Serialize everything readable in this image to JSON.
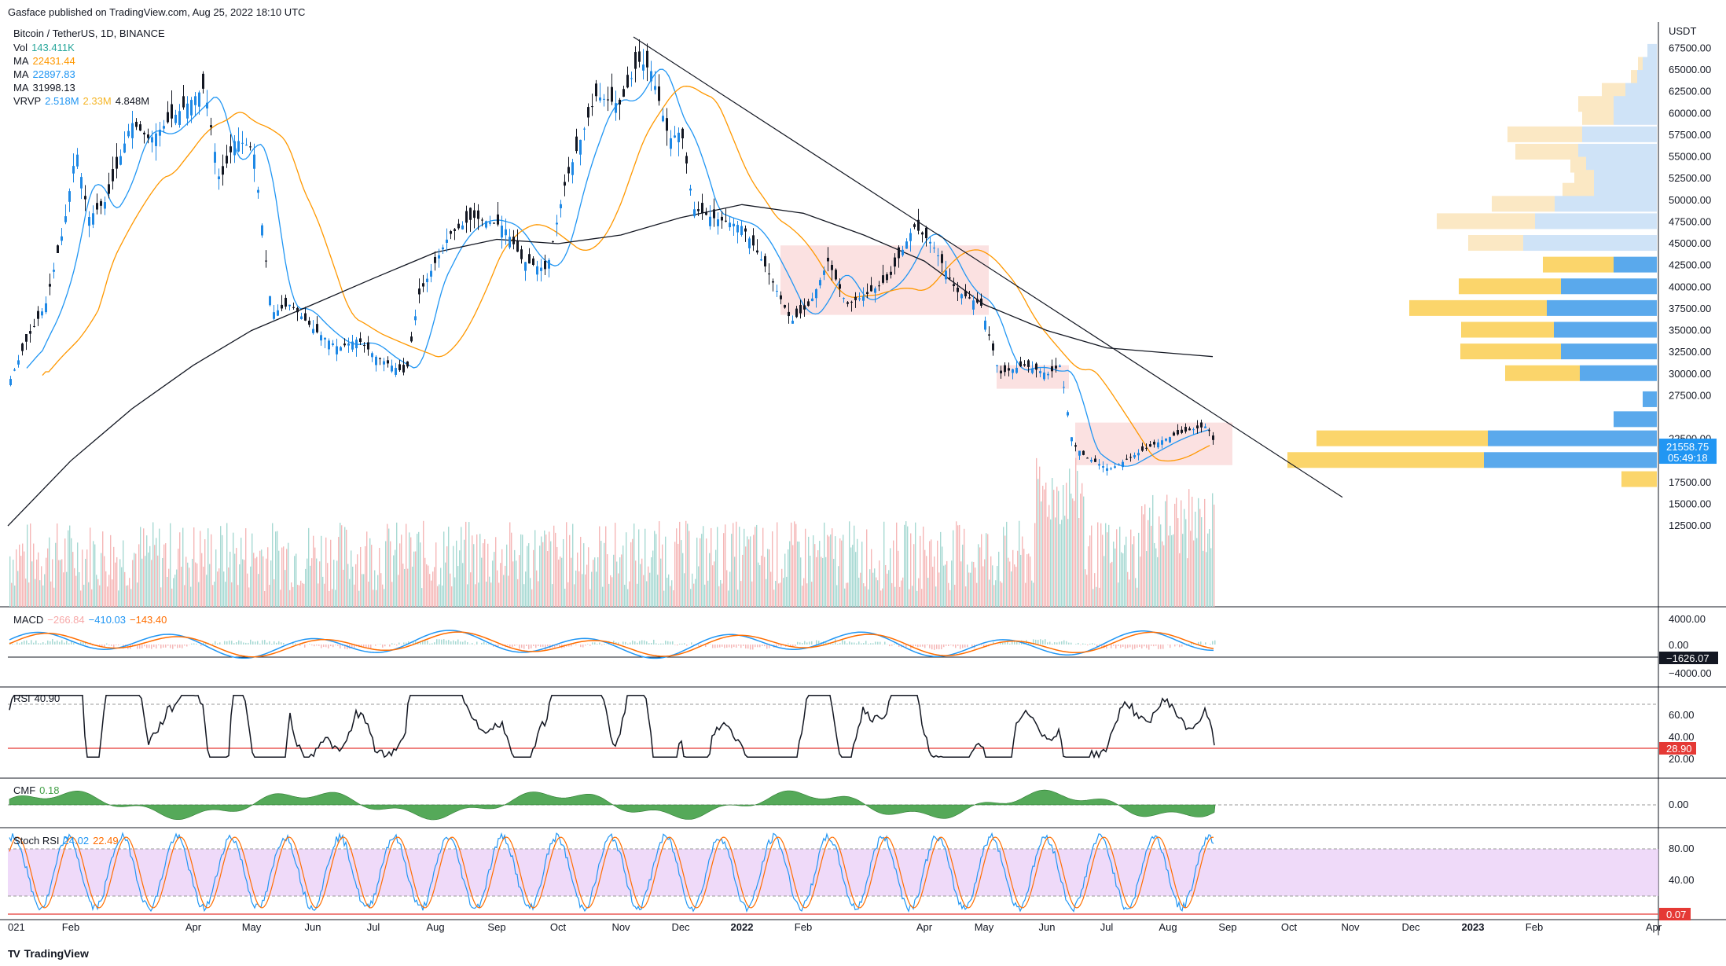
{
  "header": {
    "published": "Gasface published on TradingView.com, Aug 25, 2022 18:10 UTC"
  },
  "legend": {
    "symbol": "Bitcoin / TetherUS, 1D, BINANCE",
    "vol": {
      "label": "Vol",
      "value": "143.411K",
      "color": "#26a69a"
    },
    "ma1": {
      "label": "MA",
      "value": "22431.44",
      "color": "#ff9800"
    },
    "ma2": {
      "label": "MA",
      "value": "22897.83",
      "color": "#2196f3"
    },
    "ma3": {
      "label": "MA",
      "value": "31998.13",
      "color": "#131722"
    },
    "vrvp": {
      "label": "VRVP",
      "v1": "2.518M",
      "v2": "2.33M",
      "v3": "4.848M"
    }
  },
  "price_axis": {
    "unit": "USDT",
    "ticks": [
      "67500.00",
      "65000.00",
      "62500.00",
      "60000.00",
      "57500.00",
      "55000.00",
      "52500.00",
      "50000.00",
      "47500.00",
      "45000.00",
      "42500.00",
      "40000.00",
      "37500.00",
      "35000.00",
      "32500.00",
      "30000.00",
      "27500.00",
      "22500.00",
      "17500.00",
      "15000.00",
      "12500.00"
    ],
    "last_price": "21558.75",
    "countdown": "05:49:18"
  },
  "time_axis": [
    "021",
    "Feb",
    "Apr",
    "May",
    "Jun",
    "Jul",
    "Aug",
    "Sep",
    "Oct",
    "Nov",
    "Dec",
    "2022",
    "Feb",
    "Apr",
    "May",
    "Jun",
    "Jul",
    "Aug",
    "Sep",
    "Oct",
    "Nov",
    "Dec",
    "2023",
    "Feb",
    "Apr"
  ],
  "macd": {
    "label": "MACD",
    "v1": "−266.84",
    "v2": "−410.03",
    "v3": "−143.40",
    "ticks": [
      "4000.00",
      "0.00",
      "−4000.00"
    ],
    "badge": "−1626.07"
  },
  "rsi": {
    "label": "RSI",
    "value": "40.90",
    "ticks": [
      "60.00",
      "40.00",
      "20.00"
    ],
    "badge": "28.90"
  },
  "cmf": {
    "label": "CMF",
    "value": "0.18",
    "ticks": [
      "0.00"
    ]
  },
  "stoch": {
    "label": "Stoch RSI",
    "k": "24.02",
    "d": "22.49",
    "ticks": [
      "80.00",
      "40.00"
    ],
    "badge": "0.07"
  },
  "brand": "TradingView",
  "chart_data": {
    "type": "candlestick",
    "symbol": "BTCUSDT",
    "ylabel": "USDT",
    "ylim": [
      10000,
      70000
    ],
    "x": [
      "2021-02",
      "2021-03",
      "2021-04",
      "2021-05",
      "2021-06",
      "2021-07",
      "2021-08",
      "2021-09",
      "2021-10",
      "2021-11",
      "2021-12",
      "2022-01",
      "2022-02",
      "2022-03",
      "2022-04",
      "2022-05",
      "2022-06",
      "2022-07",
      "2022-08"
    ],
    "close_approx": [
      45000,
      58000,
      57000,
      37000,
      35000,
      41000,
      47000,
      43000,
      61000,
      57000,
      46000,
      38000,
      43000,
      45500,
      38000,
      31500,
      19900,
      23300,
      21558.75
    ],
    "series": [
      {
        "name": "MA",
        "value": 22431.44
      },
      {
        "name": "MA",
        "value": 22897.83
      },
      {
        "name": "MA",
        "value": 31998.13
      }
    ],
    "last_price": 21558.75
  }
}
